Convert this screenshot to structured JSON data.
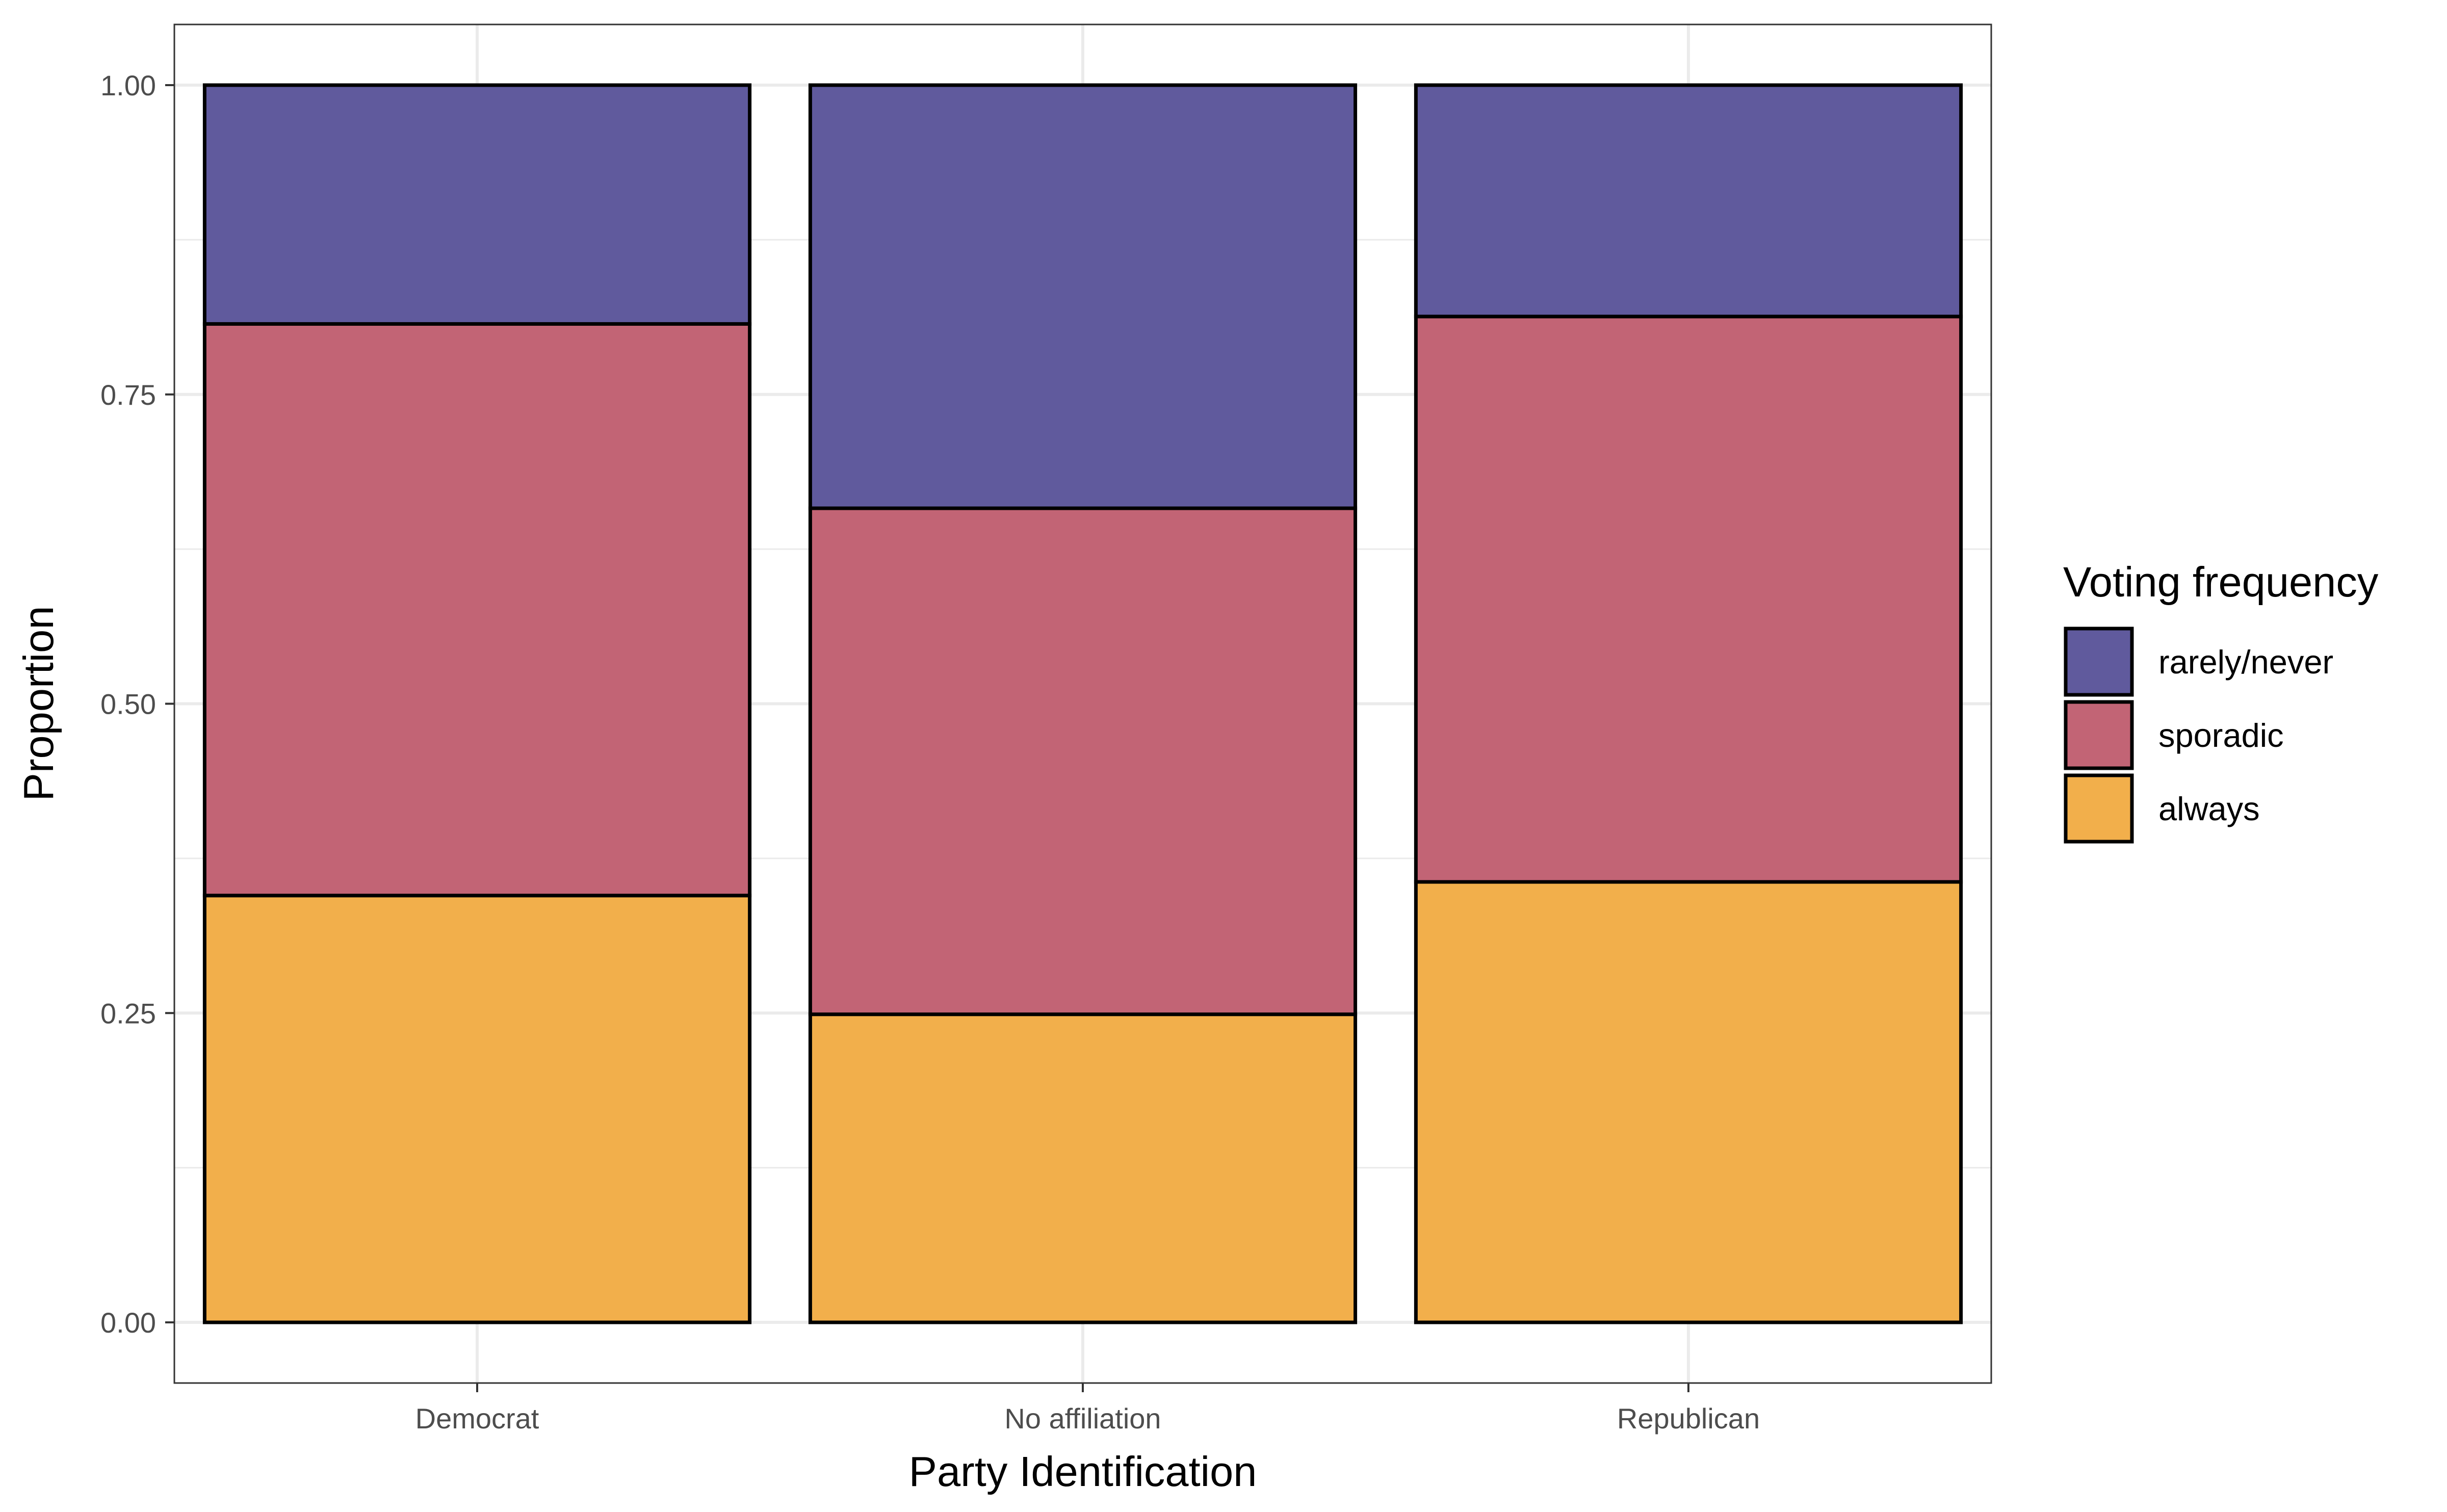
{
  "chart_data": {
    "type": "bar",
    "stacked": true,
    "xlabel": "Party Identification",
    "ylabel": "Proportion",
    "ylim": [
      0,
      1
    ],
    "yticks": [
      "0.00",
      "0.25",
      "0.50",
      "0.75",
      "1.00"
    ],
    "grid": true,
    "categories": [
      "Democrat",
      "No affiliation",
      "Republican"
    ],
    "legend": {
      "title": "Voting frequency",
      "position": "right",
      "entries": [
        "rarely/never",
        "sporadic",
        "always"
      ]
    },
    "series": [
      {
        "name": "always",
        "color": "#F2AF4B",
        "values": [
          0.345,
          0.249,
          0.356
        ]
      },
      {
        "name": "sporadic",
        "color": "#C26475",
        "values": [
          0.462,
          0.409,
          0.457
        ]
      },
      {
        "name": "rarely/never",
        "color": "#605A9D",
        "values": [
          0.193,
          0.342,
          0.187
        ]
      }
    ]
  }
}
